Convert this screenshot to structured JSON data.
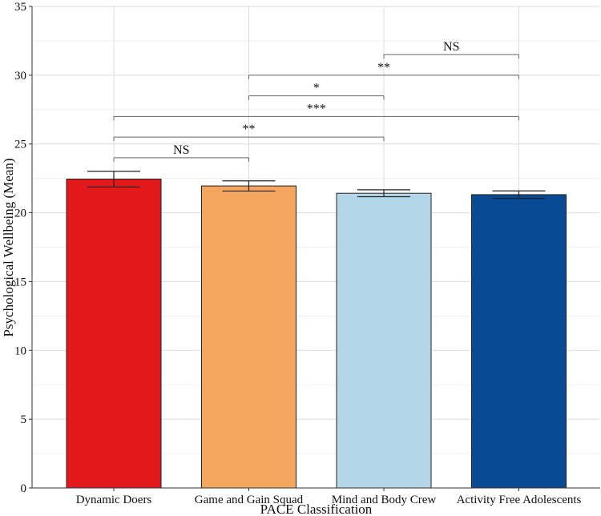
{
  "chart_data": {
    "type": "bar",
    "title": "",
    "xlabel": "PACE Classification",
    "ylabel": "Psychological Wellbeing (Mean)",
    "ylim": [
      0,
      35
    ],
    "yticks": [
      0,
      5,
      10,
      15,
      20,
      25,
      30,
      35
    ],
    "grid": true,
    "categories": [
      "Dynamic Doers",
      "Game and Gain Squad",
      "Mind and Body Crew",
      "Activity Free Adolescents"
    ],
    "values": [
      22.45,
      21.95,
      21.42,
      21.32
    ],
    "error_low": [
      21.88,
      21.58,
      21.17,
      21.05
    ],
    "error_high": [
      23.02,
      22.32,
      21.67,
      21.59
    ],
    "colors": [
      "#e31a1c",
      "#f4a65e",
      "#b3d6e8",
      "#084b94"
    ],
    "significance": [
      {
        "from": 0,
        "to": 1,
        "y": 24.0,
        "label": "NS"
      },
      {
        "from": 0,
        "to": 2,
        "y": 25.5,
        "label": "**"
      },
      {
        "from": 0,
        "to": 3,
        "y": 27.0,
        "label": "***"
      },
      {
        "from": 1,
        "to": 2,
        "y": 28.5,
        "label": "*"
      },
      {
        "from": 1,
        "to": 3,
        "y": 30.0,
        "label": "**"
      },
      {
        "from": 2,
        "to": 3,
        "y": 31.5,
        "label": "NS"
      }
    ]
  }
}
